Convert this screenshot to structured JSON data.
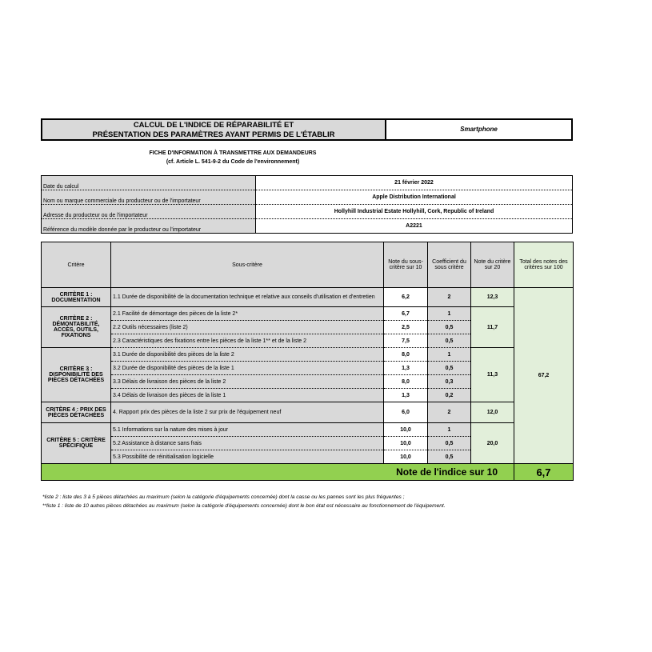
{
  "title": {
    "line1": "CALCUL DE L'INDICE DE RÉPARABILITÉ ET",
    "line2": "PRÉSENTATION DES PARAMÈTRES AYANT PERMIS DE L'ÉTABLIR",
    "category": "Smartphone"
  },
  "fiche": {
    "line1": "FICHE D'INFORMATION À TRANSMETTRE AUX DEMANDEURS",
    "line2": "(cf. Article L. 541-9-2 du Code de l'environnement)"
  },
  "info": [
    {
      "label": "Date du calcul",
      "value": "21 février 2022"
    },
    {
      "label": "Nom ou marque commerciale du producteur ou de l'importateur",
      "value": "Apple Distribution International"
    },
    {
      "label": "Adresse du producteur ou de l'importateur",
      "value": "Hollyhill Industrial Estate Hollyhill, Cork, Republic of Ireland"
    },
    {
      "label": "Référence du modèle donnée par le producteur ou l'importateur",
      "value": "A2221"
    }
  ],
  "headers": {
    "critere": "Critère",
    "sous_critere": "Sous-critère",
    "note_sous": "Note du sous-critère sur 10",
    "coef": "Coefficient du sous critère",
    "note_crit": "Note du critère sur 20",
    "total": "Total des notes des critères sur 100"
  },
  "criteria": [
    {
      "name": "CRITÈRE 1 : DOCUMENTATION",
      "score": "12,3",
      "subs": [
        {
          "label": "1.1 Durée de disponibilité de la documentation technique et relative aux conseils d'utilisation et d'entretien",
          "note": "6,2",
          "coef": "2"
        }
      ]
    },
    {
      "name": "CRITÈRE 2 : DÉMONTABILITÉ, ACCÈS, OUTILS, FIXATIONS",
      "score": "11,7",
      "subs": [
        {
          "label": "2.1 Facilité de démontage des pièces de la liste 2*",
          "note": "6,7",
          "coef": "1"
        },
        {
          "label": "2.2 Outils nécessaires (liste 2)",
          "note": "2,5",
          "coef": "0,5"
        },
        {
          "label": "2.3 Caractéristiques des fixations entre les pièces de la liste 1** et de la liste 2",
          "note": "7,5",
          "coef": "0,5"
        }
      ]
    },
    {
      "name": "CRITÈRE 3 : DISPONIBILITÉ DES PIÈCES DÉTACHÉES",
      "score": "11,3",
      "subs": [
        {
          "label": "3.1 Durée de disponibilité des pièces de la liste 2",
          "note": "8,0",
          "coef": "1"
        },
        {
          "label": "3.2 Durée de disponibilité des pièces de la liste 1",
          "note": "1,3",
          "coef": "0,5"
        },
        {
          "label": "3.3 Délais de livraison des pièces de la liste 2",
          "note": "8,0",
          "coef": "0,3"
        },
        {
          "label": "3.4 Délais de livraison des pièces de la liste 1",
          "note": "1,3",
          "coef": "0,2"
        }
      ]
    },
    {
      "name": "CRITÈRE 4 : PRIX DES PIÈCES DÉTACHÉES",
      "score": "12,0",
      "subs": [
        {
          "label": "4. Rapport prix des pièces de la liste 2 sur prix de l'équipement neuf",
          "note": "6,0",
          "coef": "2"
        }
      ]
    },
    {
      "name": "CRITÈRE 5 : CRITÈRE SPÉCIFIQUE",
      "score": "20,0",
      "subs": [
        {
          "label": "5.1 Informations sur la nature des mises à jour",
          "note": "10,0",
          "coef": "1"
        },
        {
          "label": "5.2 Assistance à distance sans frais",
          "note": "10,0",
          "coef": "0,5"
        },
        {
          "label": "5.3 Possibilité de réinitialisation logicielle",
          "note": "10,0",
          "coef": "0,5"
        }
      ]
    }
  ],
  "total": "67,2",
  "final": {
    "label": "Note de l'indice sur 10",
    "value": "6,7"
  },
  "footnotes": [
    "*liste 2 : liste des 3 à 5 pièces détachées au maximum (selon la catégorie d'équipements concernée) dont la casse ou les pannes sont les plus fréquentes ;",
    "**liste 1 : liste de 10 autres pièces détachées au maximum (selon la catégorie d'équipements concernée) dont le bon état est nécessaire au fonctionnement de l'équipement."
  ]
}
